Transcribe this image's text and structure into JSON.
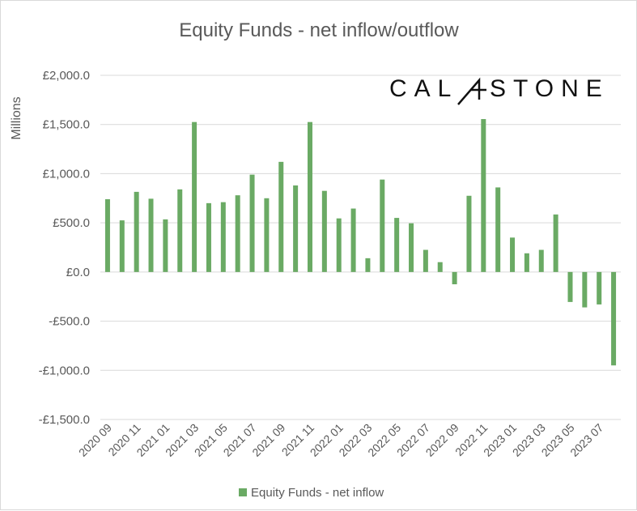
{
  "logo": {
    "text_left": "CAL",
    "text_right": "STONE",
    "full": "CALASTONE"
  },
  "chart_data": {
    "type": "bar",
    "title": "Equity Funds - net inflow/outflow",
    "ylabel": "Millions",
    "xlabel": "",
    "ylim": [
      -1500,
      2000
    ],
    "yticks": [
      2000,
      1500,
      1000,
      500,
      0,
      -500,
      -1000,
      -1500
    ],
    "ytick_labels": [
      "£2,000.0",
      "£1,500.0",
      "£1,000.0",
      "£500.0",
      "£0.0",
      "-£500.0",
      "-£1,000.0",
      "-£1,500.0"
    ],
    "categories": [
      "2020 09",
      "2020 10",
      "2020 11",
      "2020 12",
      "2021 01",
      "2021 02",
      "2021 03",
      "2021 04",
      "2021 05",
      "2021 06",
      "2021 07",
      "2021 08",
      "2021 09",
      "2021 10",
      "2021 11",
      "2021 12",
      "2022 01",
      "2022 02",
      "2022 03",
      "2022 04",
      "2022 05",
      "2022 06",
      "2022 07",
      "2022 08",
      "2022 09",
      "2022 10",
      "2022 11",
      "2022 12",
      "2023 01",
      "2023 02",
      "2023 03",
      "2023 04",
      "2023 05",
      "2023 06",
      "2023 07",
      "2023 08"
    ],
    "tick_labels": [
      "2020 09",
      "2020 11",
      "2021 01",
      "2021 03",
      "2021 05",
      "2021 07",
      "2021 09",
      "2021 11",
      "2022 01",
      "2022 03",
      "2022 05",
      "2022 07",
      "2022 09",
      "2022 11",
      "2023 01",
      "2023 03",
      "2023 05",
      "2023 07"
    ],
    "series": [
      {
        "name": "Equity Funds - net inflow",
        "color": "#6aaa64",
        "values": [
          740,
          525,
          815,
          745,
          535,
          840,
          1525,
          700,
          710,
          780,
          990,
          750,
          1120,
          880,
          1525,
          825,
          545,
          645,
          140,
          940,
          550,
          495,
          225,
          100,
          -125,
          775,
          1555,
          860,
          350,
          190,
          225,
          585,
          -305,
          -360,
          -330,
          -950
        ]
      }
    ],
    "grid": true,
    "legend_position": "bottom"
  }
}
